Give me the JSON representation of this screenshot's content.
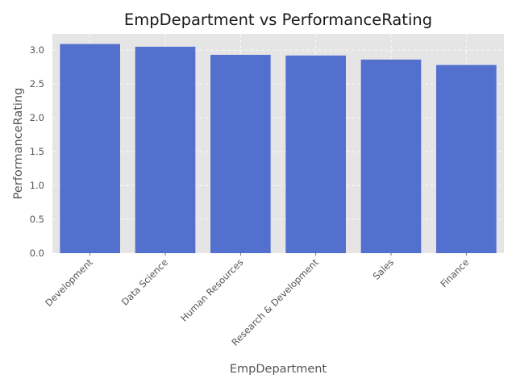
{
  "chart_data": {
    "type": "bar",
    "title": "EmpDepartment vs PerformanceRating",
    "xlabel": "EmpDepartment",
    "ylabel": "PerformanceRating",
    "categories": [
      "Development",
      "Data Science",
      "Human Resources",
      "Research & Development",
      "Sales",
      "Finance"
    ],
    "values": [
      3.09,
      3.05,
      2.93,
      2.92,
      2.86,
      2.78
    ],
    "ylim": [
      0,
      3.24
    ],
    "yticks": [
      "0.0",
      "0.5",
      "1.0",
      "1.5",
      "2.0",
      "2.5",
      "3.0"
    ],
    "grid": true,
    "colors": {
      "bar": "#5470cf",
      "plot_background": "#e5e5e5",
      "grid": "#ffffff"
    }
  }
}
